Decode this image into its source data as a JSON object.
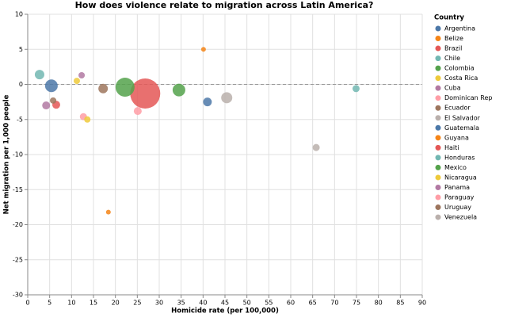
{
  "chart_data": {
    "type": "bubble",
    "title": "How does violence relate to migration across Latin America?",
    "x_label": "Homicide rate (per 100,000)",
    "y_label": "Net migration per 1,000 people",
    "legend_title": "Country",
    "legend_position": "right",
    "grid": true,
    "rule_y": 0,
    "xlim": [
      0,
      90
    ],
    "xticks": [
      0,
      5,
      10,
      15,
      20,
      25,
      30,
      35,
      40,
      45,
      50,
      55,
      60,
      65,
      70,
      75,
      80,
      85,
      90
    ],
    "ylim": [
      -30,
      10
    ],
    "yticks": [
      -30,
      -25,
      -20,
      -15,
      -10,
      -5,
      0,
      5,
      10
    ],
    "series": [
      {
        "name": "Argentina",
        "color": "#4c78a8",
        "x": 5.4,
        "y": -0.2,
        "size": 64
      },
      {
        "name": "Belize",
        "color": "#f58518",
        "x": 40.1,
        "y": 5.0,
        "size": 9
      },
      {
        "name": "Brazil",
        "color": "#e45756",
        "x": 26.8,
        "y": -1.3,
        "size": 361
      },
      {
        "name": "Chile",
        "color": "#72b7b2",
        "x": 2.7,
        "y": 1.4,
        "size": 36
      },
      {
        "name": "Colombia",
        "color": "#54a24b",
        "x": 22.2,
        "y": -0.4,
        "size": 144
      },
      {
        "name": "Costa Rica",
        "color": "#eeca3b",
        "x": 11.2,
        "y": 0.5,
        "size": 16
      },
      {
        "name": "Cuba",
        "color": "#b279a2",
        "x": 12.3,
        "y": 1.3,
        "size": 16
      },
      {
        "name": "Dominican Rep",
        "color": "#ff9da6",
        "x": 12.7,
        "y": -4.6,
        "size": 20
      },
      {
        "name": "Ecuador",
        "color": "#9d755d",
        "x": 17.2,
        "y": -0.6,
        "size": 36
      },
      {
        "name": "El Salvador",
        "color": "#bab0ac",
        "x": 65.8,
        "y": -9.0,
        "size": 20
      },
      {
        "name": "Guatemala",
        "color": "#4c78a8",
        "x": 41.0,
        "y": -2.5,
        "size": 30
      },
      {
        "name": "Guyana",
        "color": "#f58518",
        "x": 18.4,
        "y": -18.2,
        "size": 9
      },
      {
        "name": "Haiti",
        "color": "#e45756",
        "x": 6.5,
        "y": -2.9,
        "size": 25
      },
      {
        "name": "Honduras",
        "color": "#72b7b2",
        "x": 74.9,
        "y": -0.6,
        "size": 20
      },
      {
        "name": "Mexico",
        "color": "#54a24b",
        "x": 34.5,
        "y": -0.8,
        "size": 64
      },
      {
        "name": "Nicaragua",
        "color": "#eeca3b",
        "x": 13.6,
        "y": -5.0,
        "size": 16
      },
      {
        "name": "Panama",
        "color": "#b279a2",
        "x": 4.2,
        "y": -3.0,
        "size": 25
      },
      {
        "name": "Paraguay",
        "color": "#ff9da6",
        "x": 25.1,
        "y": -3.8,
        "size": 25
      },
      {
        "name": "Uruguay",
        "color": "#9d755d",
        "x": 5.8,
        "y": -2.3,
        "size": 16
      },
      {
        "name": "Venezuela",
        "color": "#bab0ac",
        "x": 45.4,
        "y": -1.9,
        "size": 49
      }
    ]
  }
}
